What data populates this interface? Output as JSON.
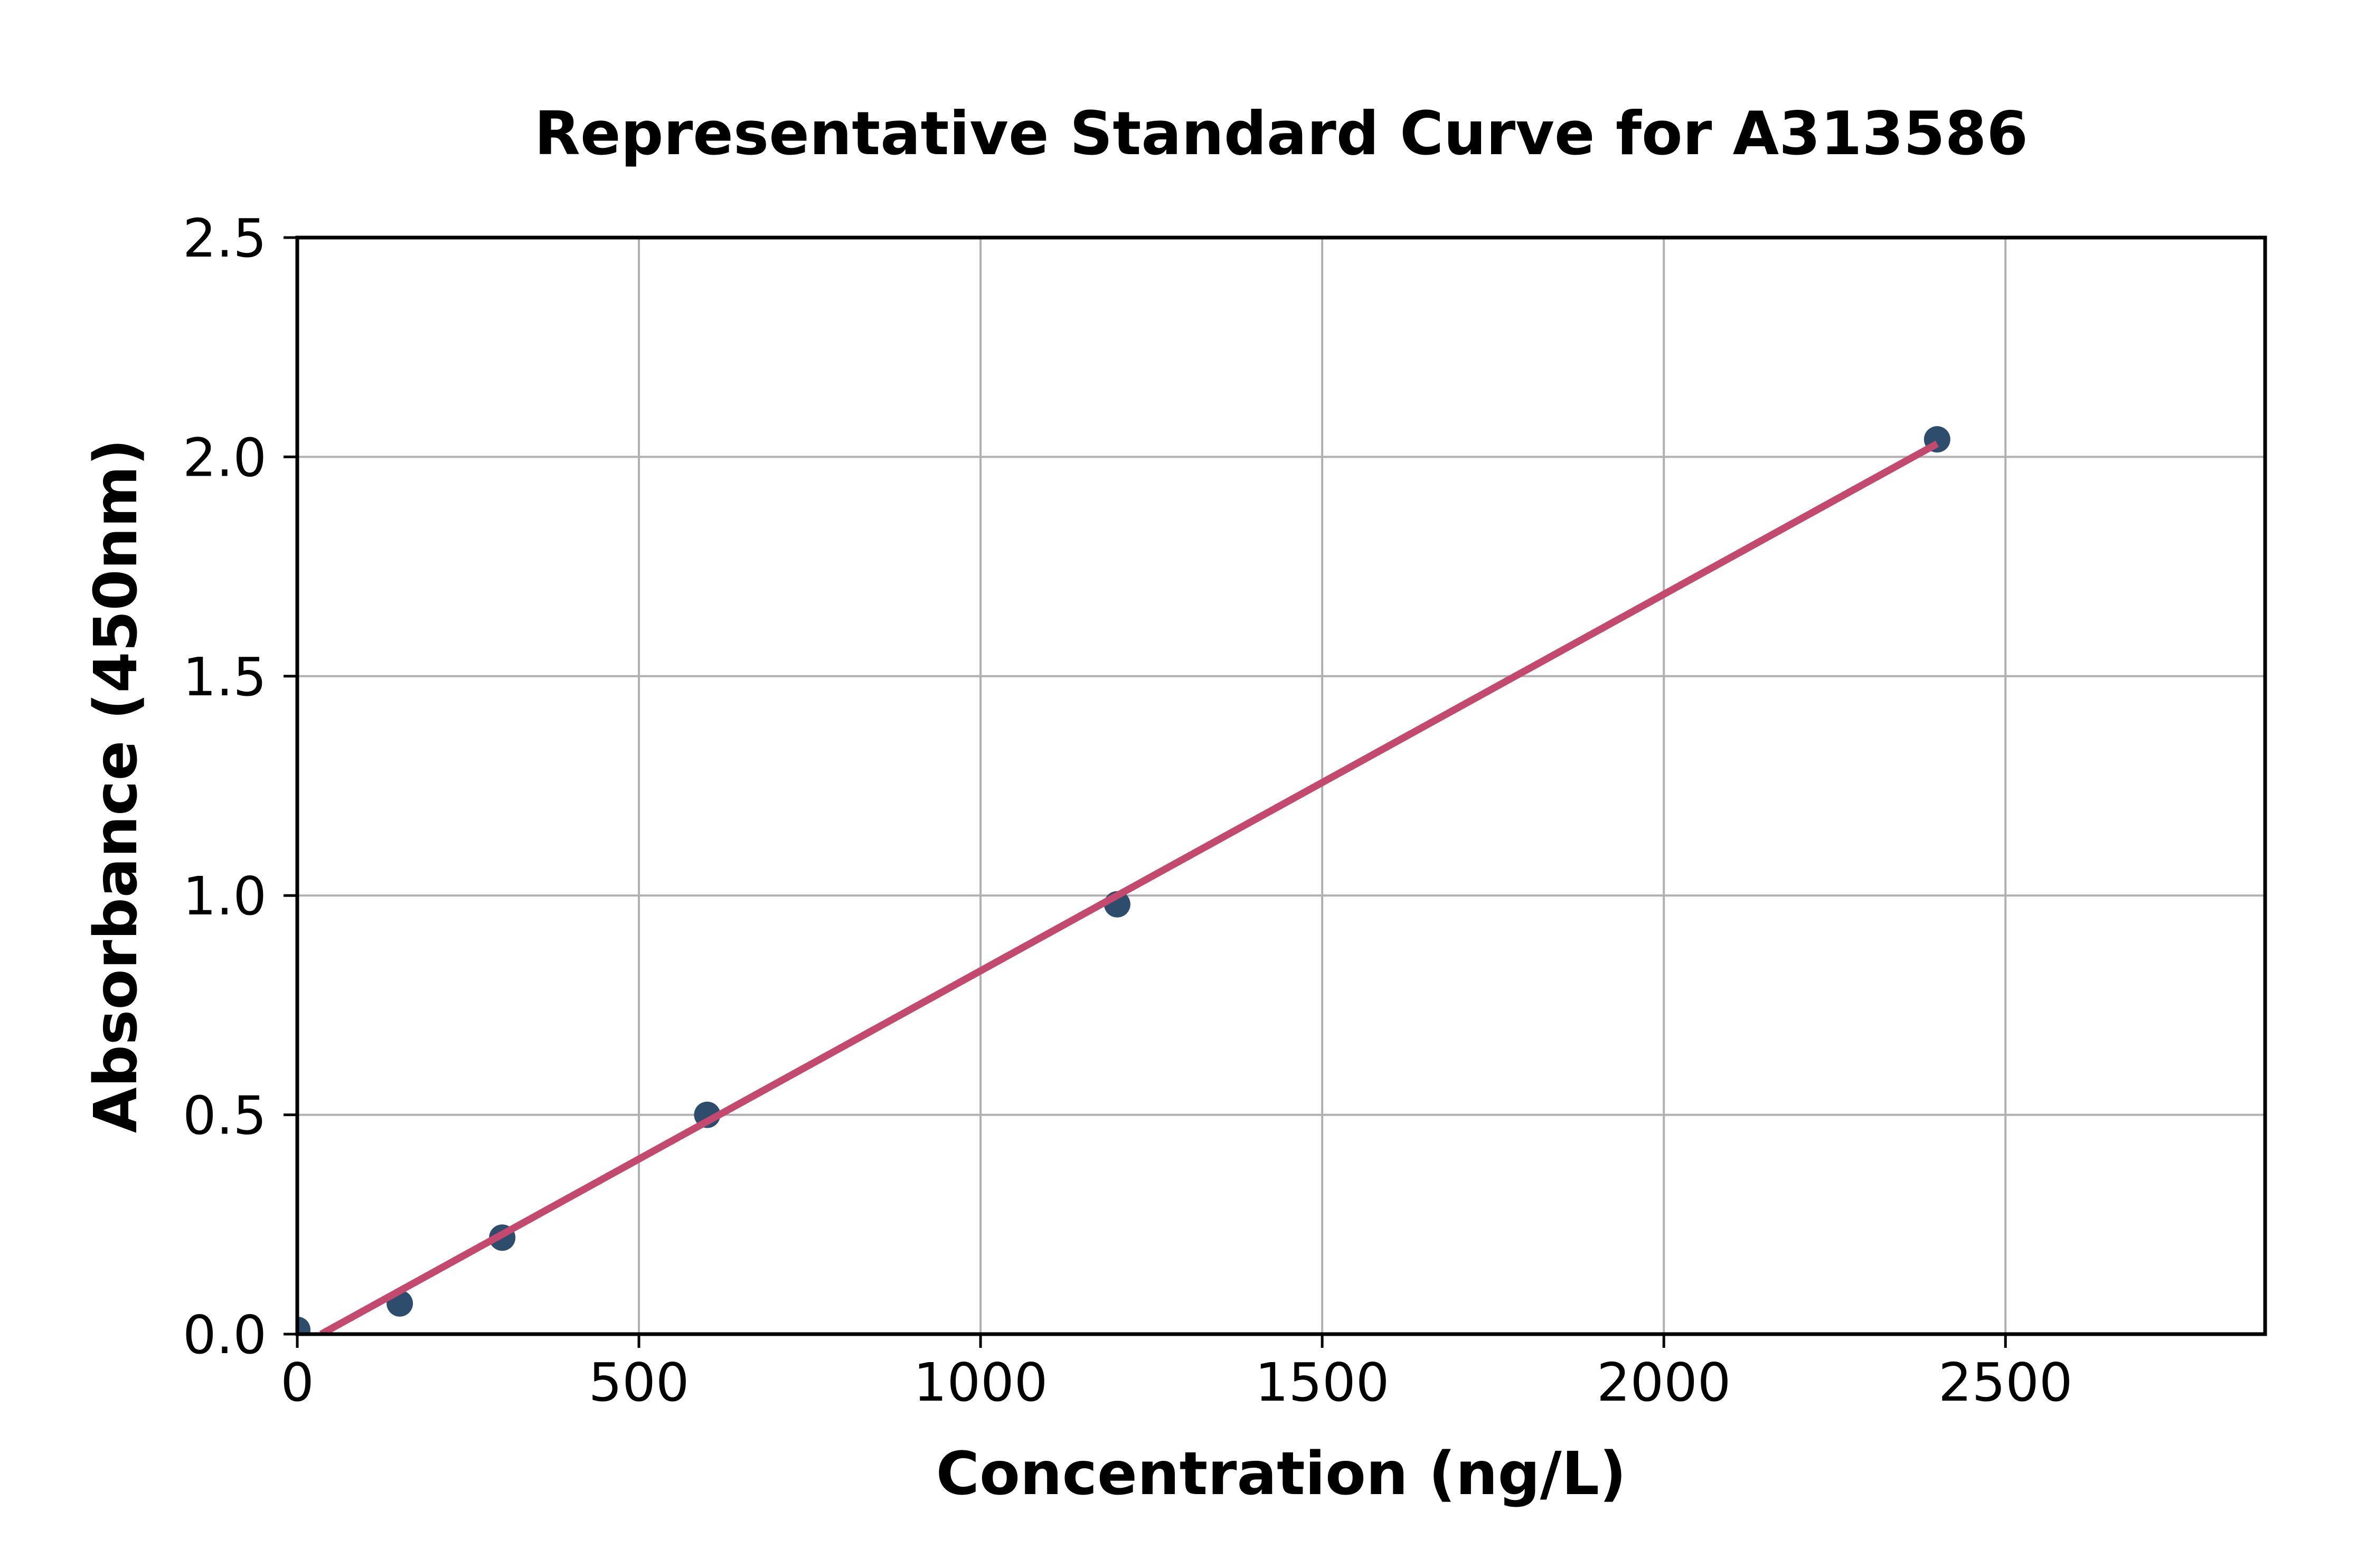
{
  "chart_data": {
    "type": "scatter",
    "title": "Representative Standard Curve for A313586",
    "xlabel": "Concentration (ng/L)",
    "ylabel": "Absorbance (450nm)",
    "xlim": [
      0,
      2880
    ],
    "ylim": [
      0,
      2.5
    ],
    "x_ticks": [
      0,
      500,
      1000,
      1500,
      2000,
      2500
    ],
    "x_tick_labels": [
      "0",
      "500",
      "1000",
      "1500",
      "2000",
      "2500"
    ],
    "y_ticks": [
      0,
      0.5,
      1,
      1.5,
      2,
      2.5
    ],
    "y_tick_labels": [
      "0.0",
      "0.5",
      "1.0",
      "1.5",
      "2.0",
      "2.5"
    ],
    "grid": true,
    "legend_position": "none",
    "series": [
      {
        "name": "standard-points",
        "type": "scatter",
        "x": [
          0,
          150,
          300,
          600,
          1200,
          2400
        ],
        "y": [
          0.01,
          0.07,
          0.22,
          0.5,
          0.98,
          2.04
        ]
      },
      {
        "name": "linear-fit",
        "type": "line",
        "x": [
          35,
          2400
        ],
        "y": [
          0,
          2.03
        ]
      }
    ],
    "colors": {
      "marker": "#2E4C6B",
      "fit_line": "#C3496F",
      "grid": "#B0B0B0",
      "axis": "#000000",
      "background": "#FFFFFF"
    }
  }
}
